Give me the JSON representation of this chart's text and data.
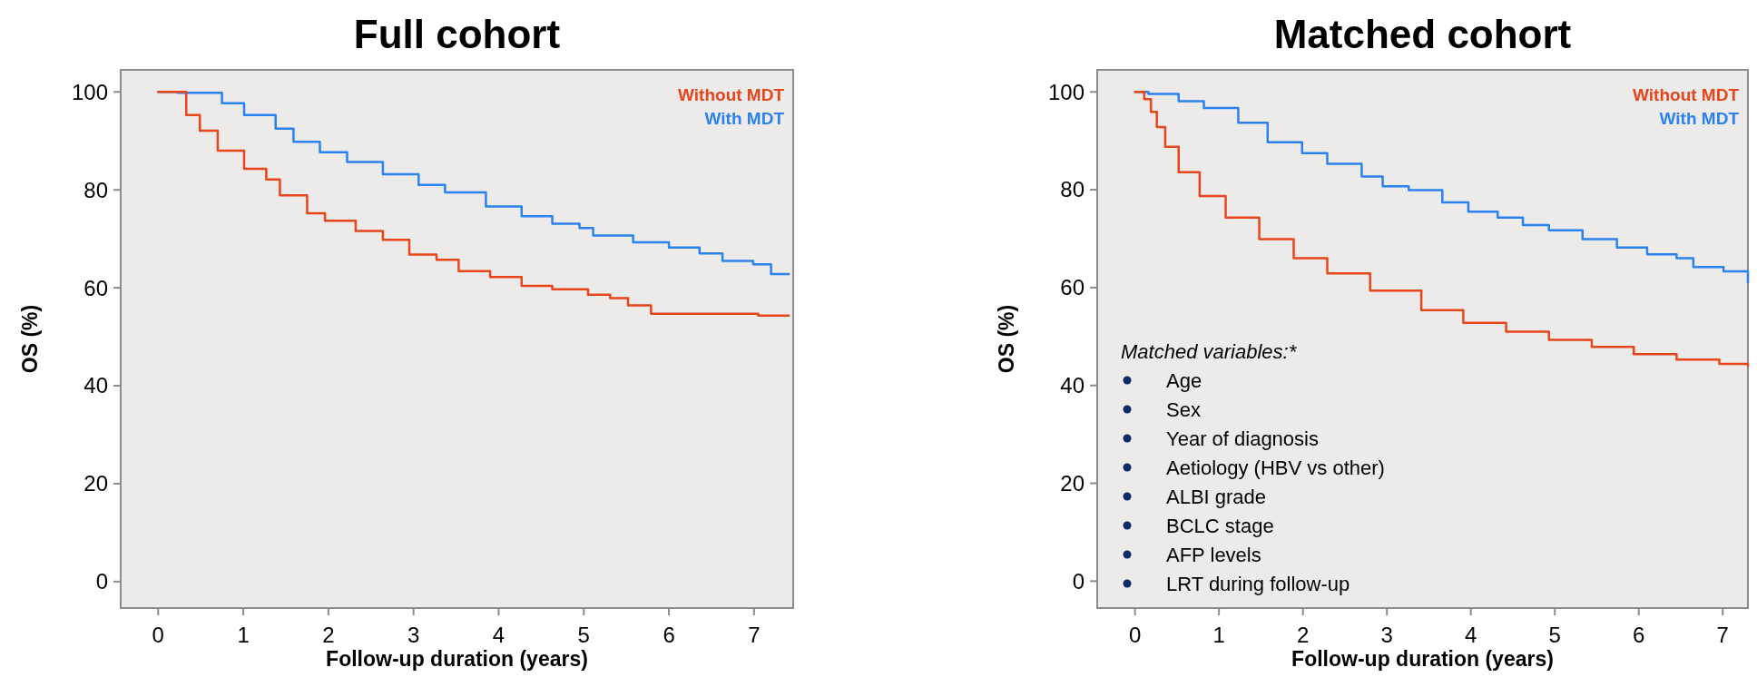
{
  "chart_data": [
    {
      "type": "step",
      "title": "Full cohort",
      "xlabel": "Follow-up duration (years)",
      "ylabel": "OS (%)",
      "xlim": [
        -0.44,
        7.46
      ],
      "xticks": [
        0,
        1,
        2,
        3,
        4,
        5,
        6,
        7
      ],
      "ylim": [
        -5.4,
        104.5
      ],
      "yticks": [
        0,
        20,
        40,
        60,
        80,
        100
      ],
      "legend": "top right",
      "series": [
        {
          "name": "Without MDT",
          "color": "#e8461a",
          "x": [
            0,
            0.33,
            0.49,
            0.7,
            1.01,
            1.27,
            1.43,
            1.75,
            1.96,
            2.32,
            2.64,
            2.95,
            3.27,
            3.53,
            3.9,
            4.27,
            4.63,
            5.05,
            5.31,
            5.52,
            5.79,
            6.94,
            7.05,
            7.41
          ],
          "values": [
            100,
            95.3,
            92.1,
            88,
            84.3,
            82.1,
            78.9,
            75.2,
            73.7,
            71.6,
            69.8,
            66.8,
            65.7,
            63.4,
            62.2,
            60.4,
            59.7,
            58.6,
            57.9,
            56.4,
            54.7,
            54.7,
            54.3,
            54.3
          ]
        },
        {
          "name": "With MDT",
          "color": "#2a82f0",
          "x": [
            0,
            0.23,
            0.75,
            1.01,
            1.38,
            1.59,
            1.9,
            2.22,
            2.64,
            3.06,
            3.37,
            3.85,
            4.27,
            4.63,
            4.95,
            5.11,
            5.58,
            6,
            6.36,
            6.63,
            6.99,
            7.2,
            7.41
          ],
          "values": [
            100,
            99.8,
            97.7,
            95.3,
            92.5,
            89.8,
            87.7,
            85.7,
            83.2,
            81,
            79.5,
            76.6,
            74.6,
            73.1,
            72.2,
            70.7,
            69.3,
            68.2,
            67,
            65.5,
            64.8,
            62.8,
            62.8
          ]
        }
      ]
    },
    {
      "type": "step",
      "title": "Matched cohort",
      "xlabel": "Follow-up duration (years)",
      "ylabel": "OS (%)",
      "xlim": [
        -0.45,
        7.3
      ],
      "xticks": [
        0,
        1,
        2,
        3,
        4,
        5,
        6,
        7
      ],
      "ylim": [
        -5.5,
        104.5
      ],
      "yticks": [
        0,
        20,
        40,
        60,
        80,
        100
      ],
      "legend": "top right",
      "annotations": [
        "Matched variables:*",
        "Age",
        "Sex",
        "Year of diagnosis",
        "Aetiology (HBV vs other)",
        "ALBI grade",
        "BCLC stage",
        "AFP levels",
        "LRT during follow-up"
      ],
      "series": [
        {
          "name": "Without MDT",
          "color": "#e8461a",
          "x": [
            0,
            0.11,
            0.19,
            0.26,
            0.36,
            0.52,
            0.77,
            1.08,
            1.48,
            1.89,
            2.29,
            2.8,
            3.41,
            3.91,
            4.42,
            4.93,
            5.44,
            5.94,
            6.45,
            6.96,
            7.3
          ],
          "values": [
            100,
            98.5,
            95.9,
            92.8,
            88.8,
            83.6,
            78.7,
            74.3,
            69.9,
            66,
            62.9,
            59.4,
            55.4,
            52.8,
            51,
            49.3,
            47.9,
            46.4,
            45.3,
            44.4,
            44
          ]
        },
        {
          "name": "With MDT",
          "color": "#2a82f0",
          "x": [
            0,
            0.16,
            0.52,
            0.82,
            1.23,
            1.58,
            1.99,
            2.29,
            2.7,
            2.95,
            3.26,
            3.66,
            3.97,
            4.32,
            4.62,
            4.93,
            5.33,
            5.74,
            6.1,
            6.45,
            6.65,
            7.01,
            7.3
          ],
          "values": [
            100,
            99.6,
            98.1,
            96.7,
            93.7,
            89.7,
            87.5,
            85.3,
            82.7,
            80.7,
            79.9,
            77.4,
            75.5,
            74.3,
            72.8,
            71.7,
            69.9,
            68.2,
            66.8,
            66,
            64.2,
            63.3,
            61.1
          ]
        }
      ]
    }
  ]
}
